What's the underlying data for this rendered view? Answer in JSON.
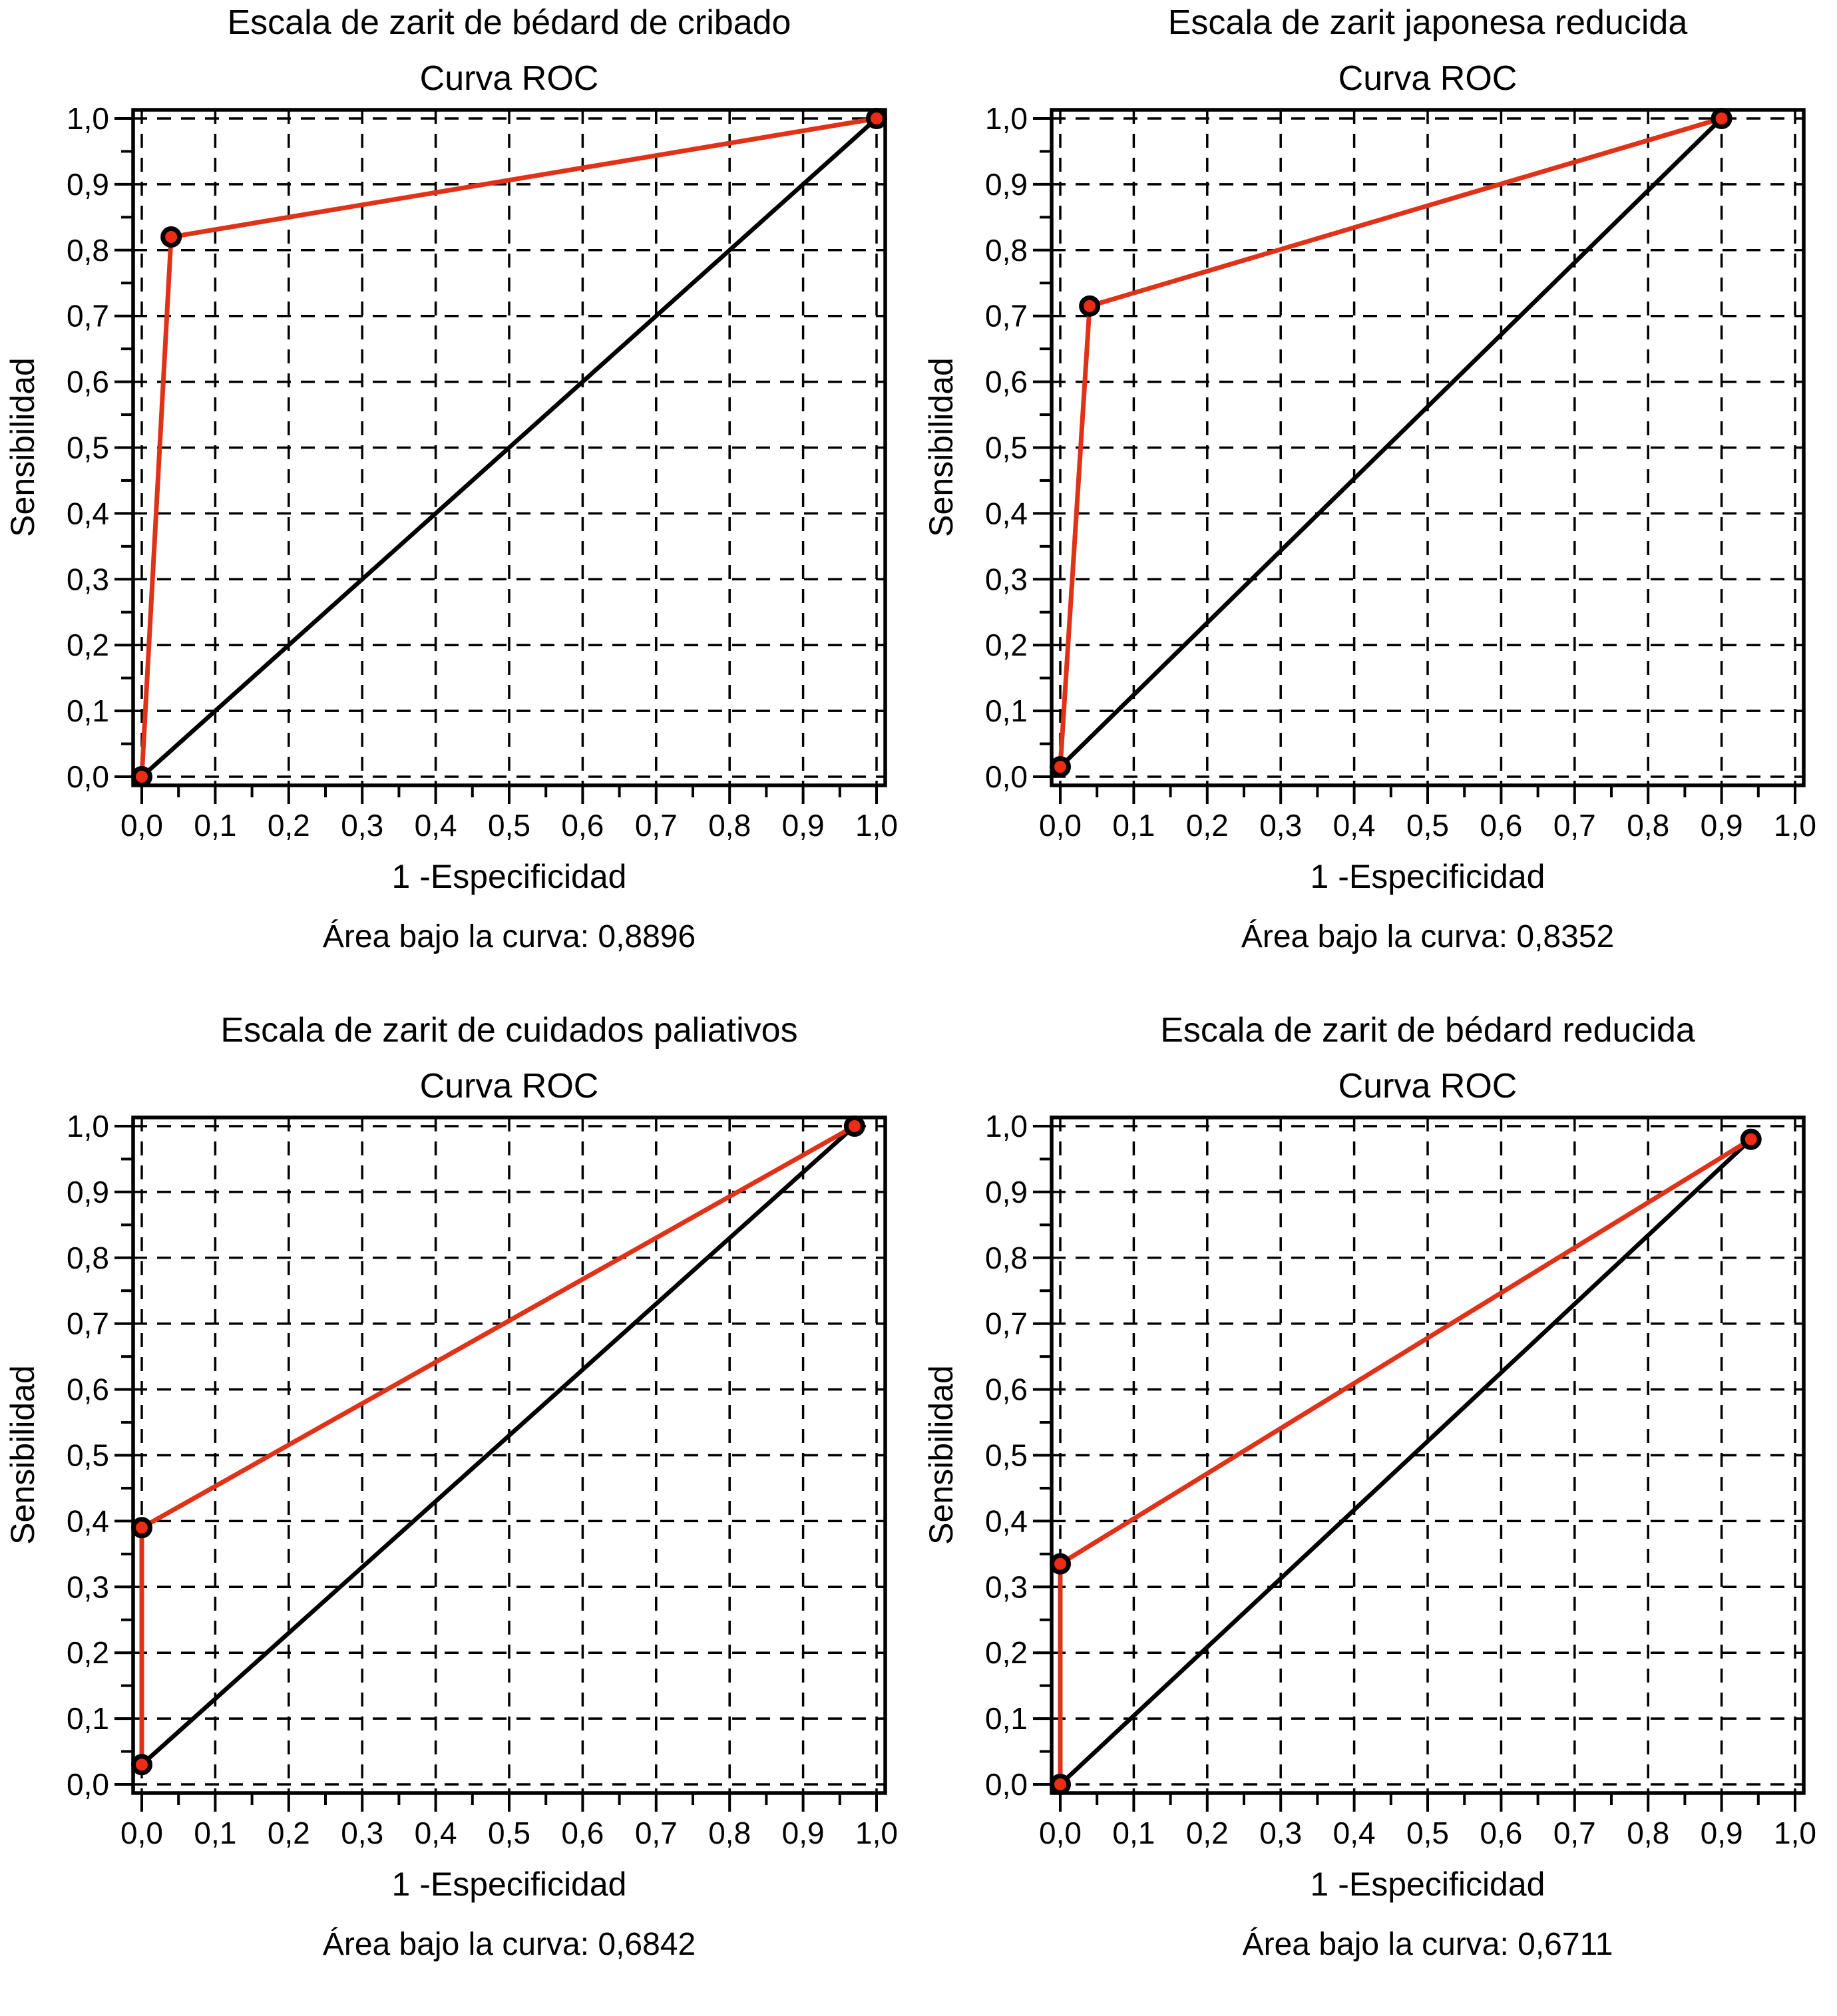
{
  "figure_colors": {
    "roc_curve": "#df3319",
    "marker_fill": "#ee2b14",
    "marker_stroke": "#000000",
    "reference_line": "#000000"
  },
  "chart_data": [
    {
      "type": "line",
      "title": "Escala de zarit de bédard de cribado",
      "subtitle": "Curva ROC",
      "xlabel": "1 -Especificidad",
      "ylabel": "Sensibilidad",
      "auc_label": "Área bajo la curva: 0,8896",
      "auc": 0.8896,
      "xlim": [
        0,
        1
      ],
      "ylim": [
        0,
        1
      ],
      "grid": "dashed",
      "x_ticks": [
        "0,0",
        "0,1",
        "0,2",
        "0,3",
        "0,4",
        "0,5",
        "0,6",
        "0,7",
        "0,8",
        "0,9",
        "1,0"
      ],
      "y_ticks": [
        "0,0",
        "0,1",
        "0,2",
        "0,3",
        "0,4",
        "0,5",
        "0,6",
        "0,7",
        "0,8",
        "0,9",
        "1,0"
      ],
      "series": [
        {
          "name": "roc",
          "color": "#df3319",
          "points": [
            [
              0.0,
              0.0
            ],
            [
              0.04,
              0.82
            ],
            [
              1.0,
              1.0
            ]
          ]
        },
        {
          "name": "reference",
          "color": "#000000",
          "points": [
            [
              0.0,
              0.0
            ],
            [
              1.0,
              1.0
            ]
          ]
        }
      ]
    },
    {
      "type": "line",
      "title": "Escala de zarit japonesa reducida",
      "subtitle": "Curva ROC",
      "xlabel": "1 -Especificidad",
      "ylabel": "Sensibilidad",
      "auc_label": "Área bajo la curva: 0,8352",
      "auc": 0.8352,
      "xlim": [
        0,
        1
      ],
      "ylim": [
        0,
        1
      ],
      "grid": "dashed",
      "x_ticks": [
        "0,0",
        "0,1",
        "0,2",
        "0,3",
        "0,4",
        "0,5",
        "0,6",
        "0,7",
        "0,8",
        "0,9",
        "1,0"
      ],
      "y_ticks": [
        "0,0",
        "0,1",
        "0,2",
        "0,3",
        "0,4",
        "0,5",
        "0,6",
        "0,7",
        "0,8",
        "0,9",
        "1,0"
      ],
      "series": [
        {
          "name": "roc",
          "color": "#df3319",
          "points": [
            [
              0.0,
              0.015
            ],
            [
              0.04,
              0.715
            ],
            [
              0.9,
              1.0
            ]
          ]
        },
        {
          "name": "reference",
          "color": "#000000",
          "points": [
            [
              0.0,
              0.015
            ],
            [
              0.9,
              1.0
            ]
          ]
        }
      ]
    },
    {
      "type": "line",
      "title": "Escala de zarit de cuidados paliativos",
      "subtitle": "Curva ROC",
      "xlabel": "1 -Especificidad",
      "ylabel": "Sensibilidad",
      "auc_label": "Área bajo la curva: 0,6842",
      "auc": 0.6842,
      "xlim": [
        0,
        1
      ],
      "ylim": [
        0,
        1
      ],
      "grid": "dashed",
      "x_ticks": [
        "0,0",
        "0,1",
        "0,2",
        "0,3",
        "0,4",
        "0,5",
        "0,6",
        "0,7",
        "0,8",
        "0,9",
        "1,0"
      ],
      "y_ticks": [
        "0,0",
        "0,1",
        "0,2",
        "0,3",
        "0,4",
        "0,5",
        "0,6",
        "0,7",
        "0,8",
        "0,9",
        "1,0"
      ],
      "series": [
        {
          "name": "roc",
          "color": "#df3319",
          "points": [
            [
              0.0,
              0.03
            ],
            [
              0.0,
              0.39
            ],
            [
              0.97,
              1.0
            ]
          ]
        },
        {
          "name": "reference",
          "color": "#000000",
          "points": [
            [
              0.0,
              0.03
            ],
            [
              0.97,
              1.0
            ]
          ]
        }
      ]
    },
    {
      "type": "line",
      "title": "Escala de zarit de bédard reducida",
      "subtitle": "Curva ROC",
      "xlabel": "1 -Especificidad",
      "ylabel": "Sensibilidad",
      "auc_label": "Área bajo la curva: 0,6711",
      "auc": 0.6711,
      "xlim": [
        0,
        1
      ],
      "ylim": [
        0,
        1
      ],
      "grid": "dashed",
      "x_ticks": [
        "0,0",
        "0,1",
        "0,2",
        "0,3",
        "0,4",
        "0,5",
        "0,6",
        "0,7",
        "0,8",
        "0,9",
        "1,0"
      ],
      "y_ticks": [
        "0,0",
        "0,1",
        "0,2",
        "0,3",
        "0,4",
        "0,5",
        "0,6",
        "0,7",
        "0,8",
        "0,9",
        "1,0"
      ],
      "series": [
        {
          "name": "roc",
          "color": "#df3319",
          "points": [
            [
              0.0,
              0.0
            ],
            [
              0.0,
              0.335
            ],
            [
              0.94,
              0.98
            ]
          ]
        },
        {
          "name": "reference",
          "color": "#000000",
          "points": [
            [
              0.0,
              0.0
            ],
            [
              0.94,
              0.98
            ]
          ]
        }
      ]
    }
  ]
}
